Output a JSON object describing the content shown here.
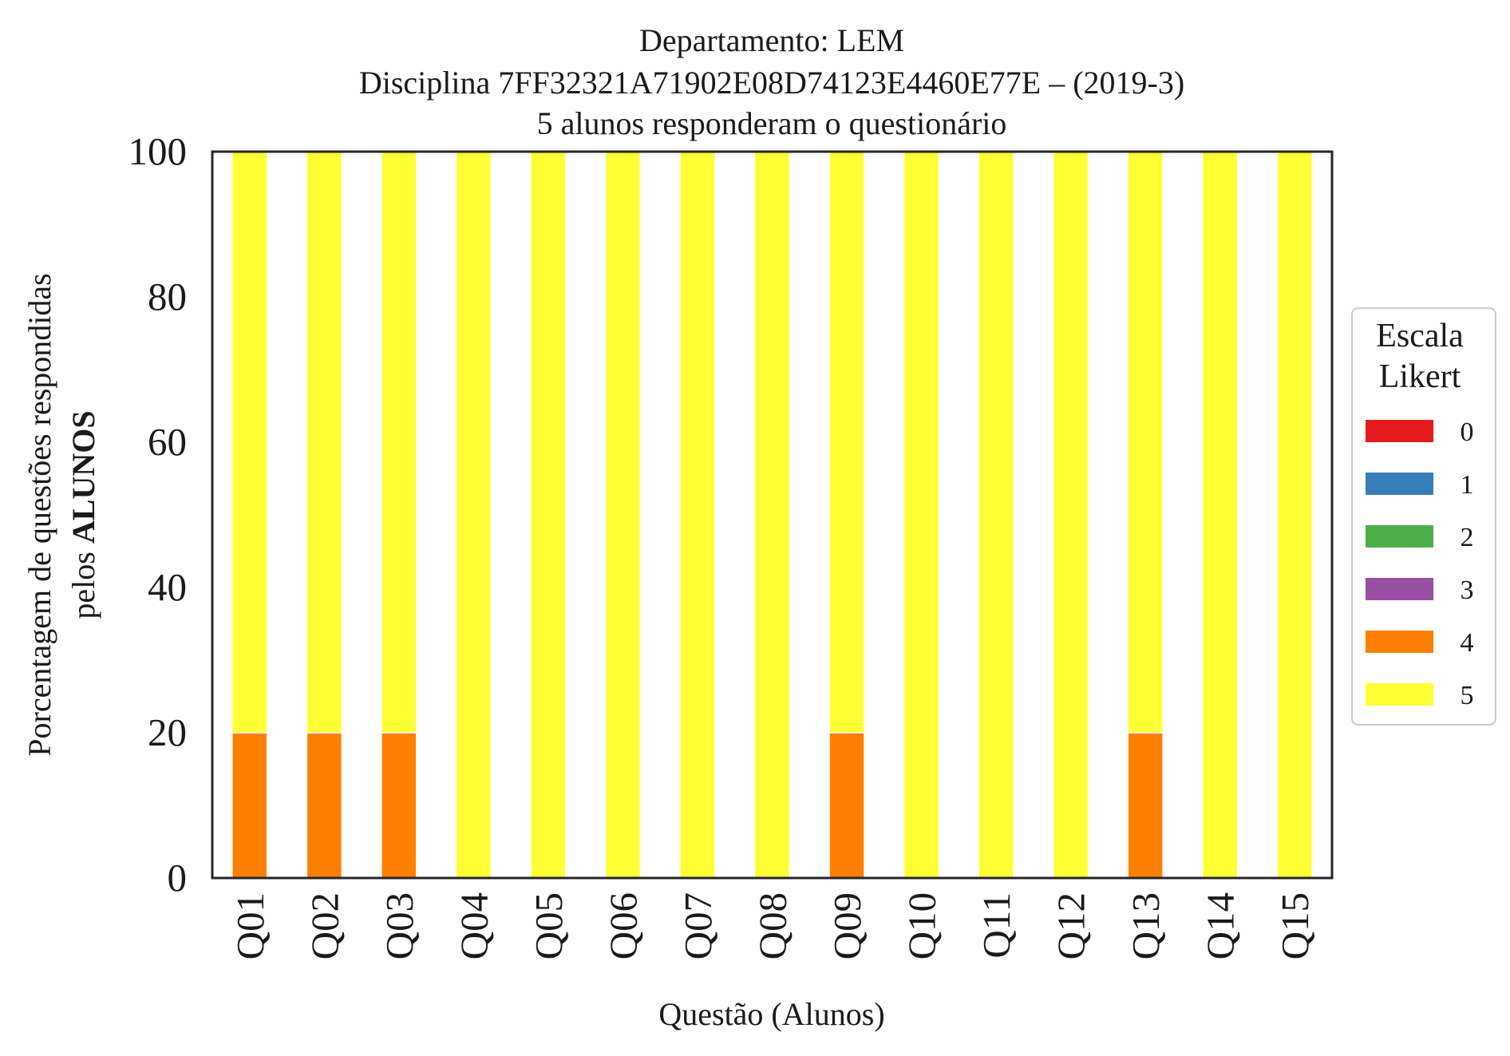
{
  "chart_data": {
    "type": "bar",
    "stacked": true,
    "title_lines": [
      "Departamento: LEM",
      "Disciplina 7FF32321A71902E08D74123E4460E77E – (2019-3)",
      "5 alunos responderam o questionário"
    ],
    "xlabel": "Questão (Alunos)",
    "ylabel": {
      "line1": "Porcentagem de questões respondidas",
      "line2_prefix": "pelos ",
      "line2_bold": "ALUNOS"
    },
    "ylim": [
      0,
      100
    ],
    "yticks": [
      "0",
      "20",
      "40",
      "60",
      "80",
      "100"
    ],
    "categories": [
      "Q01",
      "Q02",
      "Q03",
      "Q04",
      "Q05",
      "Q06",
      "Q07",
      "Q08",
      "Q09",
      "Q10",
      "Q11",
      "Q12",
      "Q13",
      "Q14",
      "Q15"
    ],
    "legend": {
      "title_lines": [
        "Escala",
        "Likert"
      ],
      "placement": "right",
      "entries": [
        "0",
        "1",
        "2",
        "3",
        "4",
        "5"
      ]
    },
    "series": [
      {
        "name": "0",
        "color": "#e41a1c",
        "values": [
          0,
          0,
          0,
          0,
          0,
          0,
          0,
          0,
          0,
          0,
          0,
          0,
          0,
          0,
          0
        ]
      },
      {
        "name": "1",
        "color": "#377eb8",
        "values": [
          0,
          0,
          0,
          0,
          0,
          0,
          0,
          0,
          0,
          0,
          0,
          0,
          0,
          0,
          0
        ]
      },
      {
        "name": "2",
        "color": "#4daf4a",
        "values": [
          0,
          0,
          0,
          0,
          0,
          0,
          0,
          0,
          0,
          0,
          0,
          0,
          0,
          0,
          0
        ]
      },
      {
        "name": "3",
        "color": "#984ea3",
        "values": [
          0,
          0,
          0,
          0,
          0,
          0,
          0,
          0,
          0,
          0,
          0,
          0,
          0,
          0,
          0
        ]
      },
      {
        "name": "4",
        "color": "#ff7f00",
        "values": [
          20,
          20,
          20,
          0,
          0,
          0,
          0,
          0,
          20,
          0,
          0,
          0,
          20,
          0,
          0
        ]
      },
      {
        "name": "5",
        "color": "#ffff33",
        "values": [
          80,
          80,
          80,
          100,
          100,
          100,
          100,
          100,
          80,
          100,
          100,
          100,
          80,
          100,
          100
        ]
      }
    ],
    "grid": false
  }
}
